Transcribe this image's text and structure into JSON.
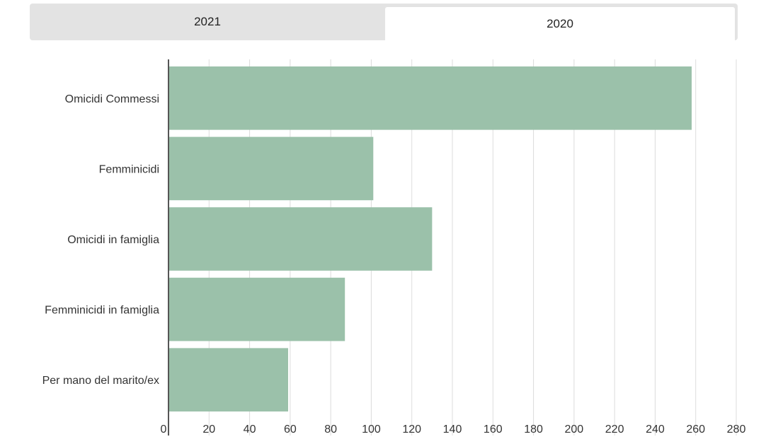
{
  "tabs": [
    {
      "label": "2021",
      "active": false
    },
    {
      "label": "2020",
      "active": true
    }
  ],
  "colors": {
    "bar": "#9bc1aa",
    "grid": "#dcdcdc",
    "axis": "#555555",
    "tab_bg": "#e3e3e3",
    "tab_active_bg": "#ffffff"
  },
  "chart_data": {
    "type": "bar",
    "orientation": "horizontal",
    "categories": [
      "Omicidi Commessi",
      "Femminicidi",
      "Omicidi in famiglia",
      "Femminicidi in famiglia",
      "Per mano del marito/ex"
    ],
    "values": [
      258,
      101,
      130,
      87,
      59
    ],
    "xlim": [
      0,
      280
    ],
    "xticks": [
      0,
      20,
      40,
      60,
      80,
      100,
      120,
      140,
      160,
      180,
      200,
      220,
      240,
      260,
      280
    ],
    "grid": true,
    "title": "",
    "xlabel": "",
    "ylabel": ""
  }
}
